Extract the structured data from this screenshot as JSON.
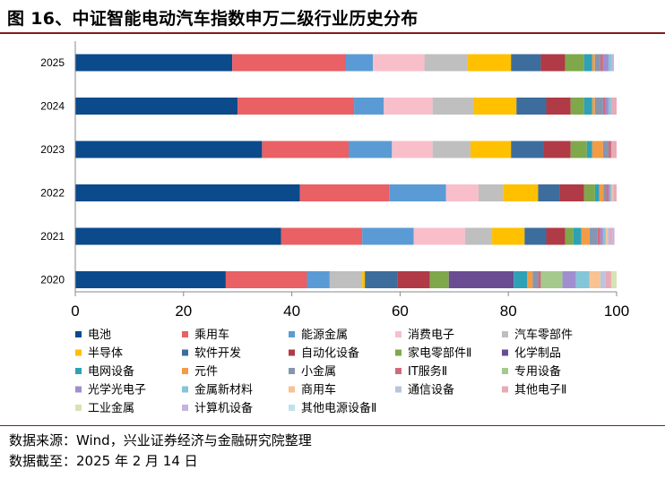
{
  "title": "图 16、中证智能电动汽车指数申万二级行业历史分布",
  "footer": {
    "source": "数据来源：Wind，兴业证券经济与金融研究院整理",
    "cutoff": "数据截至：2025 年 2 月 14 日"
  },
  "chart_data": {
    "type": "bar",
    "orientation": "horizontal",
    "stacked": true,
    "title": "",
    "xlabel": "",
    "ylabel": "",
    "xlim": [
      0,
      100
    ],
    "xticks": [
      0,
      20,
      40,
      60,
      80,
      100
    ],
    "grid": false,
    "legend_position": "bottom",
    "categories": [
      "2025",
      "2024",
      "2023",
      "2022",
      "2021",
      "2020"
    ],
    "series": [
      {
        "name": "电池",
        "color": "#0b4a8b",
        "values": [
          29.0,
          30.0,
          34.5,
          41.5,
          38.0,
          27.8
        ]
      },
      {
        "name": "乘用车",
        "color": "#e96065",
        "values": [
          21.0,
          21.5,
          16.0,
          16.5,
          15.0,
          15.0
        ]
      },
      {
        "name": "能源金属",
        "color": "#5b9bd5",
        "values": [
          5.0,
          5.5,
          8.0,
          10.5,
          9.5,
          4.2
        ]
      },
      {
        "name": "消费电子",
        "color": "#f8bfcb",
        "values": [
          9.5,
          9.0,
          7.5,
          6.0,
          9.5,
          0.0
        ]
      },
      {
        "name": "汽车零部件",
        "color": "#bfbfbf",
        "values": [
          8.0,
          7.5,
          7.0,
          4.5,
          5.0,
          6.0
        ]
      },
      {
        "name": "半导体",
        "color": "#ffc000",
        "values": [
          8.0,
          8.0,
          7.5,
          6.5,
          6.0,
          0.5
        ]
      },
      {
        "name": "软件开发",
        "color": "#3c6d9c",
        "values": [
          5.5,
          5.5,
          6.0,
          4.0,
          4.0,
          6.0
        ]
      },
      {
        "name": "自动化设备",
        "color": "#b03a46",
        "values": [
          4.5,
          4.5,
          5.0,
          4.5,
          3.5,
          6.0
        ]
      },
      {
        "name": "家电零部件Ⅱ",
        "color": "#7fa84a",
        "values": [
          3.5,
          2.5,
          3.0,
          2.0,
          1.5,
          3.5
        ]
      },
      {
        "name": "化学制品",
        "color": "#6a4c93",
        "values": [
          0.0,
          0.0,
          0.0,
          0.0,
          0.0,
          12.0
        ]
      },
      {
        "name": "电网设备",
        "color": "#2ea1b7",
        "values": [
          1.5,
          1.5,
          1.0,
          0.8,
          1.5,
          2.5
        ]
      },
      {
        "name": "元件",
        "color": "#f39c45",
        "values": [
          0.5,
          0.5,
          2.0,
          0.8,
          1.5,
          1.0
        ]
      },
      {
        "name": "小金属",
        "color": "#8596b0",
        "values": [
          1.0,
          1.5,
          1.0,
          0.5,
          1.5,
          1.0
        ]
      },
      {
        "name": "IT服务Ⅱ",
        "color": "#d06b7e",
        "values": [
          0.5,
          0.5,
          0.5,
          0.4,
          0.5,
          0.5
        ]
      },
      {
        "name": "专用设备",
        "color": "#a5c98c",
        "values": [
          0.0,
          0.0,
          0.0,
          0.0,
          0.0,
          4.0
        ]
      },
      {
        "name": "光学光电子",
        "color": "#a18ed0",
        "values": [
          1.0,
          0.5,
          0.0,
          0.3,
          0.5,
          2.5
        ]
      },
      {
        "name": "金属新材料",
        "color": "#83c6d8",
        "values": [
          0.5,
          0.5,
          0.0,
          0.3,
          0.5,
          2.5
        ]
      },
      {
        "name": "商用车",
        "color": "#f8c291",
        "values": [
          0.0,
          0.0,
          0.0,
          0.2,
          0.3,
          2.0
        ]
      },
      {
        "name": "通信设备",
        "color": "#b9c5e0",
        "values": [
          0.0,
          0.0,
          0.0,
          0.2,
          0.3,
          1.0
        ]
      },
      {
        "name": "其他电子Ⅱ",
        "color": "#e8aab5",
        "values": [
          0.0,
          1.0,
          1.0,
          0.5,
          0.6,
          1.0
        ]
      },
      {
        "name": "工业金属",
        "color": "#d5e3b5",
        "values": [
          0.0,
          0.0,
          0.0,
          0.0,
          0.0,
          1.0
        ]
      },
      {
        "name": "计算机设备",
        "color": "#c3b4dd",
        "values": [
          0.5,
          0.0,
          0.0,
          0.0,
          0.4,
          0.0
        ]
      },
      {
        "name": "其他电源设备Ⅱ",
        "color": "#bfe2ea",
        "values": [
          0.0,
          0.0,
          0.0,
          0.0,
          0.0,
          0.0
        ]
      }
    ]
  }
}
